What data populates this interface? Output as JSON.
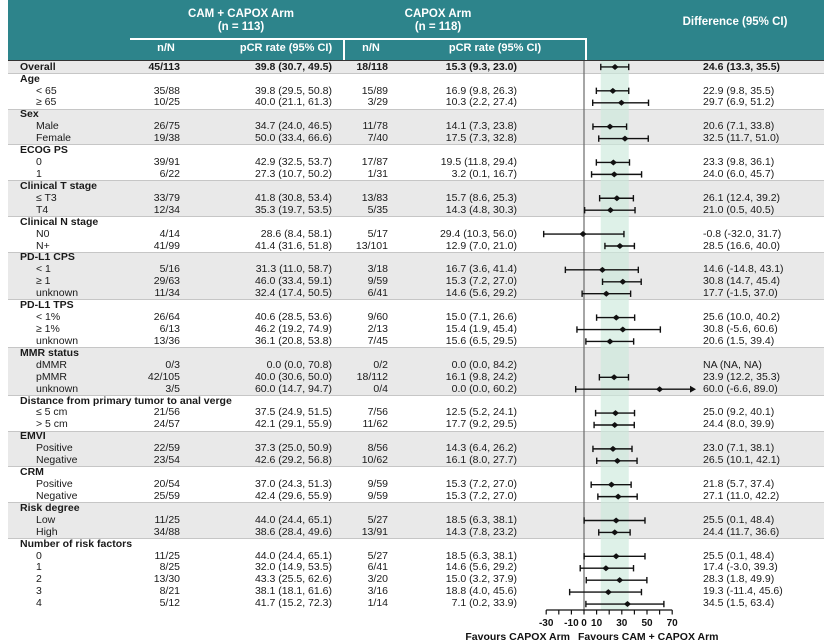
{
  "header": {
    "arm1_title": "CAM + CAPOX Arm",
    "arm1_n": "(n = 113)",
    "arm2_title": "CAPOX Arm",
    "arm2_n": "(n = 118)",
    "diff_title": "Difference (95% CI)",
    "col_nN_arm1": "n/N",
    "col_pcr_arm1": "pCR rate (95% CI)",
    "col_nN_arm2": "n/N",
    "col_pcr_arm2": "pCR rate (95% CI)"
  },
  "colors": {
    "header_bg": "#2d848b",
    "stripe": "#e9e9e9",
    "band": "#cde9db",
    "marker": "#111111",
    "zero_line": "#6b6b6b",
    "text": "#1a1a1a"
  },
  "chart_data": {
    "type": "scatter",
    "variant": "forest-plot",
    "xlim": [
      -30,
      70
    ],
    "x_ticks": [
      -30,
      -20,
      -10,
      0,
      10,
      20,
      30,
      40,
      50,
      60,
      70
    ],
    "x_tick_labels": [
      {
        "v": -30,
        "t": "-30"
      },
      {
        "v": -10,
        "t": "-10"
      },
      {
        "v": 0,
        "t": "0"
      },
      {
        "v": 10,
        "t": "10"
      },
      {
        "v": 30,
        "t": "30"
      },
      {
        "v": 50,
        "t": "50"
      },
      {
        "v": 70,
        "t": "70"
      }
    ],
    "shaded_band": {
      "lo": 13.3,
      "hi": 35.5
    },
    "favours_left": "Favours CAPOX Arm",
    "favours_right": "Favours CAM + CAPOX Arm",
    "blocks": [
      {
        "rows": [
          {
            "label": "Overall",
            "bold": true,
            "n1": "45/113",
            "p1": "39.8 (30.7, 49.5)",
            "n2": "18/118",
            "p2": "15.3 (9.3, 23.0)",
            "diff": "24.6 (13.3, 35.5)",
            "est": 24.6,
            "lo": 13.3,
            "hi": 35.5
          }
        ]
      },
      {
        "header": "Age",
        "rows": [
          {
            "label": "< 65",
            "n1": "35/88",
            "p1": "39.8 (29.5, 50.8)",
            "n2": "15/89",
            "p2": "16.9 (9.8, 26.3)",
            "diff": "22.9 (9.8, 35.5)",
            "est": 22.9,
            "lo": 9.8,
            "hi": 35.5
          },
          {
            "label": "≥ 65",
            "n1": "10/25",
            "p1": "40.0 (21.1, 61.3)",
            "n2": "3/29",
            "p2": "10.3 (2.2, 27.4)",
            "diff": "29.7 (6.9, 51.2)",
            "est": 29.7,
            "lo": 6.9,
            "hi": 51.2
          }
        ]
      },
      {
        "header": "Sex",
        "rows": [
          {
            "label": "Male",
            "n1": "26/75",
            "p1": "34.7 (24.0, 46.5)",
            "n2": "11/78",
            "p2": "14.1 (7.3, 23.8)",
            "diff": "20.6 (7.1, 33.8)",
            "est": 20.6,
            "lo": 7.1,
            "hi": 33.8
          },
          {
            "label": "Female",
            "n1": "19/38",
            "p1": "50.0 (33.4, 66.6)",
            "n2": "7/40",
            "p2": "17.5 (7.3, 32.8)",
            "diff": "32.5 (11.7, 51.0)",
            "est": 32.5,
            "lo": 11.7,
            "hi": 51.0
          }
        ]
      },
      {
        "header": "ECOG PS",
        "rows": [
          {
            "label": "0",
            "n1": "39/91",
            "p1": "42.9 (32.5, 53.7)",
            "n2": "17/87",
            "p2": "19.5 (11.8, 29.4)",
            "diff": "23.3 (9.8, 36.1)",
            "est": 23.3,
            "lo": 9.8,
            "hi": 36.1
          },
          {
            "label": "1",
            "n1": "6/22",
            "p1": "27.3 (10.7, 50.2)",
            "n2": "1/31",
            "p2": "3.2 (0.1, 16.7)",
            "diff": "24.0 (6.0, 45.7)",
            "est": 24.0,
            "lo": 6.0,
            "hi": 45.7
          }
        ]
      },
      {
        "header": "Clinical T stage",
        "rows": [
          {
            "label": "≤ T3",
            "n1": "33/79",
            "p1": "41.8 (30.8, 53.4)",
            "n2": "13/83",
            "p2": "15.7 (8.6, 25.3)",
            "diff": "26.1 (12.4, 39.2)",
            "est": 26.1,
            "lo": 12.4,
            "hi": 39.2
          },
          {
            "label": "T4",
            "n1": "12/34",
            "p1": "35.3 (19.7, 53.5)",
            "n2": "5/35",
            "p2": "14.3 (4.8, 30.3)",
            "diff": "21.0 (0.5, 40.5)",
            "est": 21.0,
            "lo": 0.5,
            "hi": 40.5
          }
        ]
      },
      {
        "header": "Clinical N stage",
        "rows": [
          {
            "label": "N0",
            "n1": "4/14",
            "p1": "28.6 (8.4, 58.1)",
            "n2": "5/17",
            "p2": "29.4 (10.3, 56.0)",
            "diff": "-0.8 (-32.0, 31.7)",
            "est": -0.8,
            "lo": -32.0,
            "hi": 31.7
          },
          {
            "label": "N+",
            "n1": "41/99",
            "p1": "41.4 (31.6, 51.8)",
            "n2": "13/101",
            "p2": "12.9 (7.0, 21.0)",
            "diff": "28.5 (16.6, 40.0)",
            "est": 28.5,
            "lo": 16.6,
            "hi": 40.0
          }
        ]
      },
      {
        "header": "PD-L1 CPS",
        "rows": [
          {
            "label": "< 1",
            "n1": "5/16",
            "p1": "31.3 (11.0, 58.7)",
            "n2": "3/18",
            "p2": "16.7 (3.6, 41.4)",
            "diff": "14.6 (-14.8, 43.1)",
            "est": 14.6,
            "lo": -14.8,
            "hi": 43.1
          },
          {
            "label": "≥ 1",
            "n1": "29/63",
            "p1": "46.0 (33.4, 59.1)",
            "n2": "9/59",
            "p2": "15.3 (7.2, 27.0)",
            "diff": "30.8 (14.7, 45.4)",
            "est": 30.8,
            "lo": 14.7,
            "hi": 45.4
          },
          {
            "label": "unknown",
            "n1": "11/34",
            "p1": "32.4 (17.4, 50.5)",
            "n2": "6/41",
            "p2": "14.6 (5.6, 29.2)",
            "diff": "17.7 (-1.5, 37.0)",
            "est": 17.7,
            "lo": -1.5,
            "hi": 37.0
          }
        ]
      },
      {
        "header": "PD-L1 TPS",
        "rows": [
          {
            "label": "< 1%",
            "n1": "26/64",
            "p1": "40.6 (28.5, 53.6)",
            "n2": "9/60",
            "p2": "15.0 (7.1, 26.6)",
            "diff": "25.6 (10.0, 40.2)",
            "est": 25.6,
            "lo": 10.0,
            "hi": 40.2
          },
          {
            "label": "≥ 1%",
            "n1": "6/13",
            "p1": "46.2 (19.2, 74.9)",
            "n2": "2/13",
            "p2": "15.4 (1.9, 45.4)",
            "diff": "30.8 (-5.6, 60.6)",
            "est": 30.8,
            "lo": -5.6,
            "hi": 60.6
          },
          {
            "label": "unknown",
            "n1": "13/36",
            "p1": "36.1 (20.8, 53.8)",
            "n2": "7/45",
            "p2": "15.6 (6.5, 29.5)",
            "diff": "20.6 (1.5, 39.4)",
            "est": 20.6,
            "lo": 1.5,
            "hi": 39.4
          }
        ]
      },
      {
        "header": "MMR status",
        "rows": [
          {
            "label": "dMMR",
            "n1": "0/3",
            "p1": "0.0 (0.0, 70.8)",
            "n2": "0/2",
            "p2": "0.0 (0.0, 84.2)",
            "diff": "NA (NA, NA)",
            "est": null,
            "lo": null,
            "hi": null
          },
          {
            "label": "pMMR",
            "n1": "42/105",
            "p1": "40.0 (30.6, 50.0)",
            "n2": "18/112",
            "p2": "16.1 (9.8, 24.2)",
            "diff": "23.9 (12.2, 35.3)",
            "est": 23.9,
            "lo": 12.2,
            "hi": 35.3
          },
          {
            "label": "unknown",
            "n1": "3/5",
            "p1": "60.0 (14.7, 94.7)",
            "n2": "0/4",
            "p2": "0.0 (0.0, 60.2)",
            "diff": "60.0 (-6.6, 89.0)",
            "est": 60.0,
            "lo": -6.6,
            "hi": 89.0
          }
        ]
      },
      {
        "header": "Distance from primary tumor to anal verge",
        "rows": [
          {
            "label": "≤ 5 cm",
            "n1": "21/56",
            "p1": "37.5 (24.9, 51.5)",
            "n2": "7/56",
            "p2": "12.5 (5.2, 24.1)",
            "diff": "25.0 (9.2, 40.1)",
            "est": 25.0,
            "lo": 9.2,
            "hi": 40.1
          },
          {
            "label": "> 5 cm",
            "n1": "24/57",
            "p1": "42.1 (29.1, 55.9)",
            "n2": "11/62",
            "p2": "17.7 (9.2, 29.5)",
            "diff": "24.4 (8.0, 39.9)",
            "est": 24.4,
            "lo": 8.0,
            "hi": 39.9
          }
        ]
      },
      {
        "header": "EMVI",
        "rows": [
          {
            "label": "Positive",
            "n1": "22/59",
            "p1": "37.3 (25.0, 50.9)",
            "n2": "8/56",
            "p2": "14.3 (6.4, 26.2)",
            "diff": "23.0 (7.1, 38.1)",
            "est": 23.0,
            "lo": 7.1,
            "hi": 38.1
          },
          {
            "label": "Negative",
            "n1": "23/54",
            "p1": "42.6 (29.2, 56.8)",
            "n2": "10/62",
            "p2": "16.1 (8.0, 27.7)",
            "diff": "26.5 (10.1, 42.1)",
            "est": 26.5,
            "lo": 10.1,
            "hi": 42.1
          }
        ]
      },
      {
        "header": "CRM",
        "rows": [
          {
            "label": "Positive",
            "n1": "20/54",
            "p1": "37.0 (24.3, 51.3)",
            "n2": "9/59",
            "p2": "15.3 (7.2, 27.0)",
            "diff": "21.8 (5.7, 37.4)",
            "est": 21.8,
            "lo": 5.7,
            "hi": 37.4
          },
          {
            "label": "Negative",
            "n1": "25/59",
            "p1": "42.4 (29.6, 55.9)",
            "n2": "9/59",
            "p2": "15.3 (7.2, 27.0)",
            "diff": "27.1 (11.0, 42.2)",
            "est": 27.1,
            "lo": 11.0,
            "hi": 42.2
          }
        ]
      },
      {
        "header": "Risk degree",
        "rows": [
          {
            "label": "Low",
            "n1": "11/25",
            "p1": "44.0 (24.4, 65.1)",
            "n2": "5/27",
            "p2": "18.5 (6.3, 38.1)",
            "diff": "25.5 (0.1, 48.4)",
            "est": 25.5,
            "lo": 0.1,
            "hi": 48.4
          },
          {
            "label": "High",
            "n1": "34/88",
            "p1": "38.6 (28.4, 49.6)",
            "n2": "13/91",
            "p2": "14.3 (7.8, 23.2)",
            "diff": "24.4 (11.7, 36.6)",
            "est": 24.4,
            "lo": 11.7,
            "hi": 36.6
          }
        ]
      },
      {
        "header": "Number of risk factors",
        "rows": [
          {
            "label": "0",
            "n1": "11/25",
            "p1": "44.0 (24.4, 65.1)",
            "n2": "5/27",
            "p2": "18.5 (6.3, 38.1)",
            "diff": "25.5 (0.1, 48.4)",
            "est": 25.5,
            "lo": 0.1,
            "hi": 48.4
          },
          {
            "label": "1",
            "n1": "8/25",
            "p1": "32.0 (14.9, 53.5)",
            "n2": "6/41",
            "p2": "14.6 (5.6, 29.2)",
            "diff": "17.4 (-3.0, 39.3)",
            "est": 17.4,
            "lo": -3.0,
            "hi": 39.3
          },
          {
            "label": "2",
            "n1": "13/30",
            "p1": "43.3 (25.5, 62.6)",
            "n2": "3/20",
            "p2": "15.0 (3.2, 37.9)",
            "diff": "28.3 (1.8, 49.9)",
            "est": 28.3,
            "lo": 1.8,
            "hi": 49.9
          },
          {
            "label": "3",
            "n1": "8/21",
            "p1": "38.1 (18.1, 61.6)",
            "n2": "3/16",
            "p2": "18.8 (4.0, 45.6)",
            "diff": "19.3 (-11.4, 45.6)",
            "est": 19.3,
            "lo": -11.4,
            "hi": 45.6
          },
          {
            "label": "4",
            "n1": "5/12",
            "p1": "41.7 (15.2, 72.3)",
            "n2": "1/14",
            "p2": "7.1 (0.2, 33.9)",
            "diff": "34.5 (1.5, 63.4)",
            "est": 34.5,
            "lo": 1.5,
            "hi": 63.4
          }
        ]
      }
    ]
  }
}
